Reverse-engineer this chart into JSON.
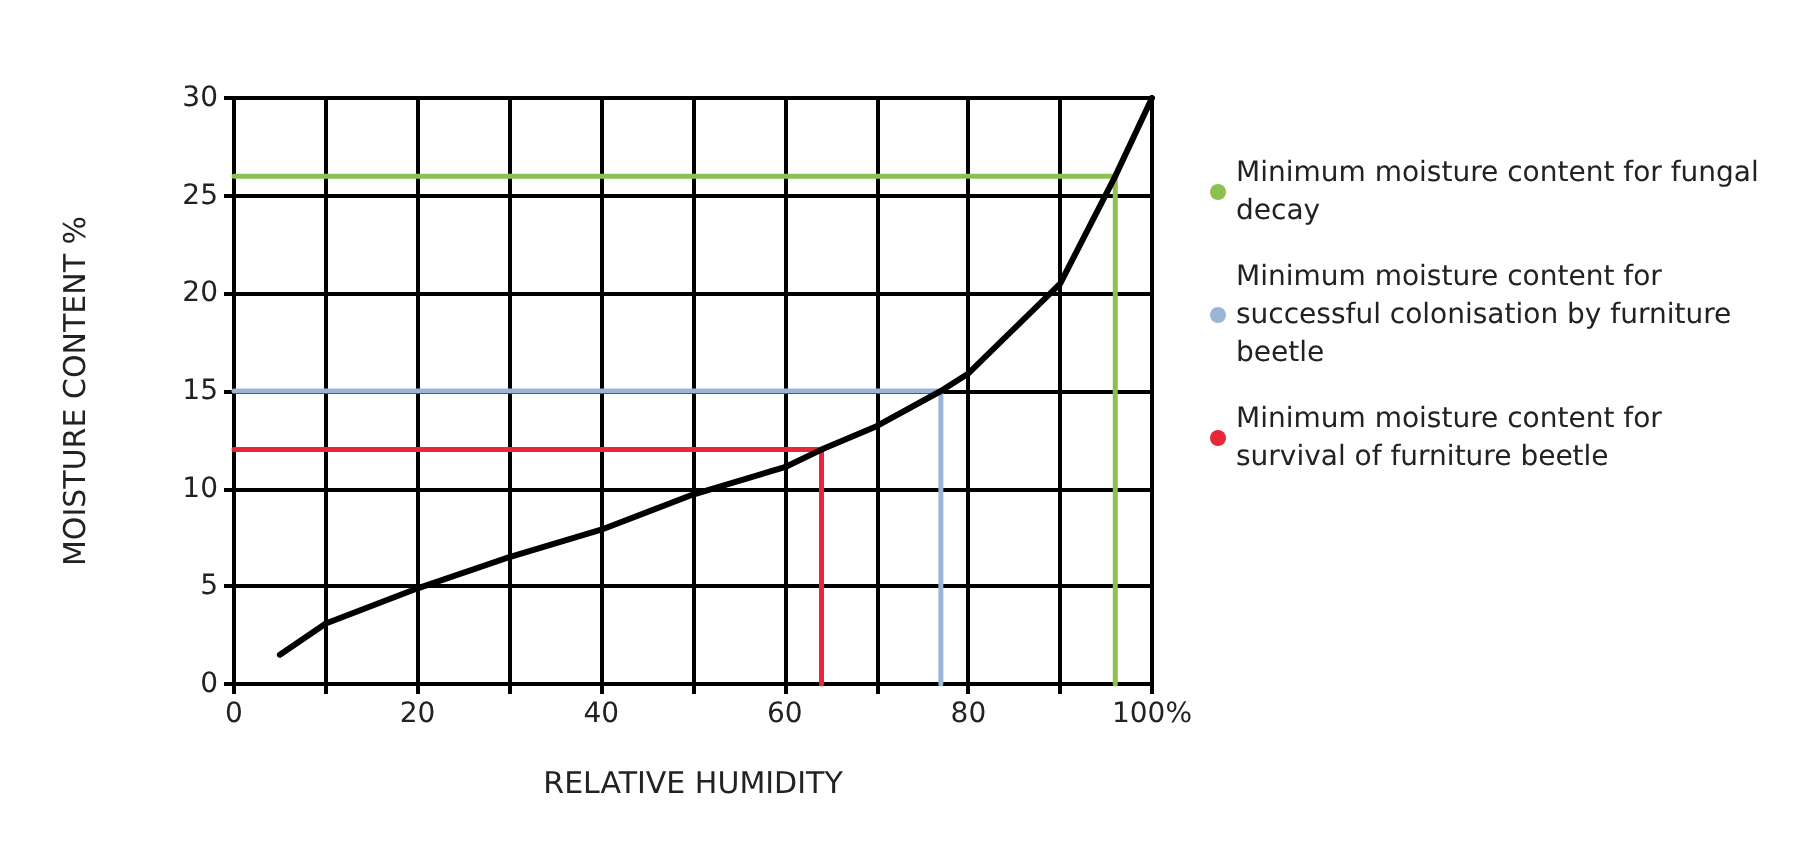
{
  "chart_data": {
    "type": "line",
    "xlabel": "RELATIVE HUMIDITY",
    "ylabel": "MOISTURE CONTENT %",
    "xlim": [
      0,
      100
    ],
    "ylim": [
      0,
      30
    ],
    "xticks": [
      0,
      {
        "value": 10,
        "label": null
      },
      20,
      {
        "value": 30,
        "label": null
      },
      40,
      {
        "value": 50,
        "label": null
      },
      60,
      {
        "value": 70,
        "label": null
      },
      80,
      {
        "value": 90,
        "label": null
      },
      {
        "value": 100,
        "label": "100%"
      }
    ],
    "yticks": [
      0,
      5,
      10,
      15,
      20,
      25,
      30
    ],
    "grid": true,
    "legend": "right",
    "marker": "none",
    "line_style": "solid",
    "series": [
      {
        "color": "#000000",
        "x": [
          5,
          10,
          20,
          30,
          40,
          50,
          60,
          64,
          70,
          77,
          80,
          90,
          96,
          100
        ],
        "values": [
          1.5,
          3.1,
          4.9,
          6.5,
          7.9,
          9.7,
          11.1,
          12,
          13.2,
          15,
          15.9,
          20.5,
          26,
          30
        ]
      },
      {
        "name": "Minimum moisture content for fungal decay",
        "color": "#8dc14f",
        "x": [
          0,
          96,
          96
        ],
        "values": [
          26,
          26,
          0
        ]
      },
      {
        "name": "Minimum moisture content for successful colonisation by furniture beetle",
        "color": "#9bb5d6",
        "x": [
          0,
          77,
          77
        ],
        "values": [
          15,
          15,
          0
        ]
      },
      {
        "name": "Minimum moisture content for survival of furniture beetle",
        "color": "#e8283a",
        "x": [
          0,
          64,
          64
        ],
        "values": [
          12,
          12,
          0
        ]
      }
    ]
  }
}
